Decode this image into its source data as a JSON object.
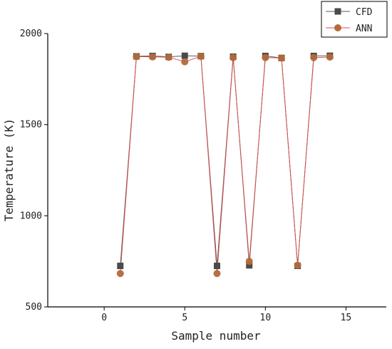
{
  "chart_data": {
    "type": "line",
    "xlabel": "Sample number",
    "ylabel": "Temperature (K)",
    "xlim": [
      -3.5,
      17.5
    ],
    "ylim": [
      500,
      2000
    ],
    "xticks": [
      0,
      5,
      10,
      15
    ],
    "yticks": [
      500,
      1000,
      1500,
      2000
    ],
    "grid": false,
    "legend_position": "top-right",
    "x": [
      1,
      2,
      3,
      4,
      5,
      6,
      7,
      8,
      9,
      10,
      11,
      12,
      13,
      14
    ],
    "series": [
      {
        "name": "CFD",
        "marker": "square",
        "color": "#4a4a4a",
        "line_color": "#5a5a5a",
        "values": [
          725,
          1875,
          1877,
          1872,
          1878,
          1876,
          725,
          1873,
          728,
          1877,
          1866,
          725,
          1877,
          1878
        ]
      },
      {
        "name": "ANN",
        "marker": "circle",
        "color": "#b5693a",
        "line_color": "#d9534f",
        "values": [
          683,
          1873,
          1872,
          1870,
          1845,
          1875,
          683,
          1868,
          750,
          1868,
          1866,
          728,
          1868,
          1871
        ]
      }
    ]
  }
}
